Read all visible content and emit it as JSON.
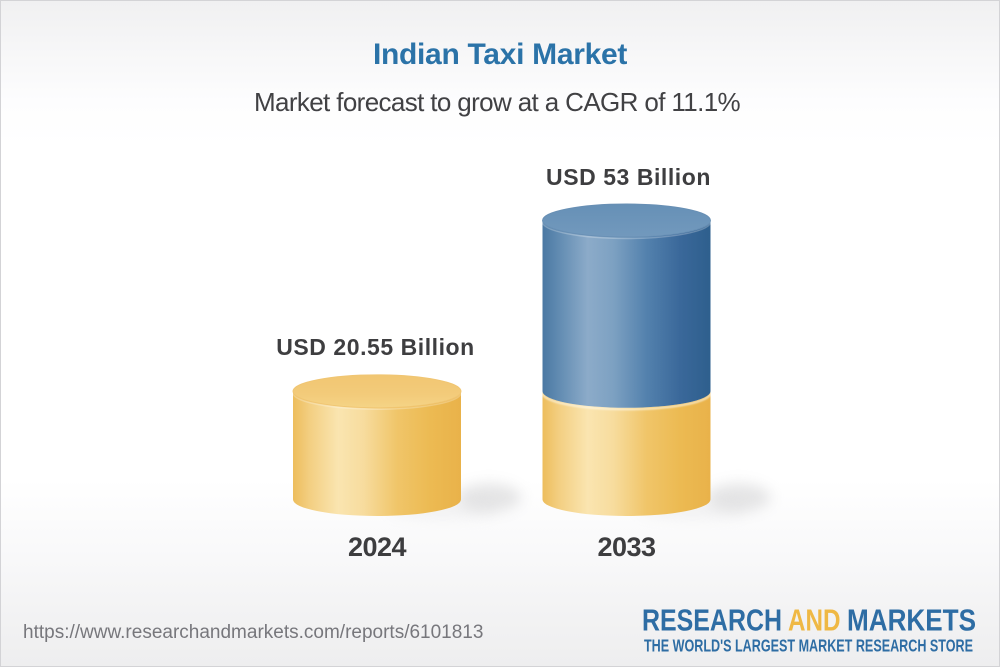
{
  "header": {
    "title": "Indian Taxi Market",
    "subtitle": "Market forecast to grow at a CAGR of 11.1%"
  },
  "chart_data": {
    "type": "bar",
    "variant": "3d-cylinder",
    "title": "Indian Taxi Market",
    "subtitle": "Market forecast to grow at a CAGR of 11.1%",
    "cagr_percent": 11.1,
    "unit": "USD Billion",
    "categories": [
      "2024",
      "2033"
    ],
    "values": [
      20.55,
      53
    ],
    "value_labels": [
      "USD 20.55 Billion",
      "USD 53 Billion"
    ],
    "bars": [
      {
        "category": "2024",
        "total": 20.55,
        "label": "USD 20.55 Billion",
        "segments": [
          {
            "value": 20.55,
            "color": "gold"
          }
        ]
      },
      {
        "category": "2033",
        "total": 53,
        "label": "USD 53 Billion",
        "segments": [
          {
            "value": 20.55,
            "color": "gold"
          },
          {
            "value": 32.45,
            "color": "blue"
          }
        ]
      }
    ],
    "ylim": [
      0,
      53
    ],
    "grid": false,
    "legend": false
  },
  "colors": {
    "title_blue": "#2b73a8",
    "text_dark": "#3e3e40",
    "url_gray": "#77777c",
    "gold_mid": "#f2c979",
    "gold_dark": "#e9b24a",
    "gold_light": "#fae5b3",
    "blue_mid": "#6892b8",
    "blue_dark": "#2e5f8d",
    "blue_light": "#8cabc9",
    "logo_blue": "#2e6da4",
    "logo_gold": "#efb844"
  },
  "footer": {
    "url": "https://www.researchandmarkets.com/reports/6101813",
    "logo": {
      "word1": "RESEARCH",
      "word2": "AND",
      "word3": "MARKETS",
      "tagline": "THE WORLD'S LARGEST MARKET RESEARCH STORE"
    }
  }
}
